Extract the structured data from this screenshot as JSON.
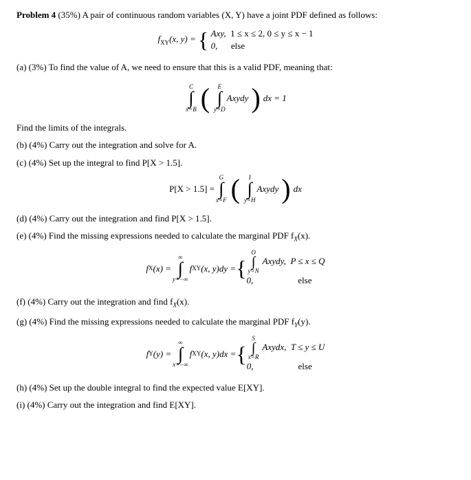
{
  "problem": {
    "title": "Problem 4",
    "weight": "(35%)",
    "intro": "A pair of continuous random variables (X, Y) have a joint PDF defined as follows:"
  },
  "pdf_def": {
    "lhs": "f",
    "sub": "XY",
    "args": "(x, y) = ",
    "case1_expr": "Axy,",
    "case1_cond": "1 ≤ x ≤ 2, 0 ≤ y ≤ x − 1",
    "case2_expr": "0,",
    "case2_cond": "else"
  },
  "part_a": {
    "label": "(a) (3%) To find the value of A, we need to ensure that this is a valid PDF, meaning that:",
    "int1_upper": "C",
    "int1_lower": "x=B",
    "int2_upper": "E",
    "int2_lower": "y=D",
    "integrand": "Axydy",
    "dx": "dx = 1",
    "tail": "Find the limits of the integrals."
  },
  "part_b": {
    "label": "(b) (4%) Carry out the integration and solve for A."
  },
  "part_c": {
    "label": "(c) (4%) Set up the integral to find P[X > 1.5].",
    "lhs": "P[X > 1.5] = ",
    "int1_upper": "G",
    "int1_lower": "x=F",
    "int2_upper": "I",
    "int2_lower": "y=H",
    "integrand": "Axydy",
    "dx": "dx"
  },
  "part_d": {
    "label": "(d) (4%) Carry out the integration and find P[X > 1.5]."
  },
  "part_e": {
    "label": "(e) (4%) Find the missing expressions needed to calculate the marginal PDF f",
    "label_sub": "X",
    "label_tail": "(x).",
    "lhs_f": "f",
    "lhs_sub": "X",
    "lhs_args": "(x) = ",
    "int1_upper": "∞",
    "int1_lower": "y=−∞",
    "integrand1": "f",
    "integrand1_sub": "XY",
    "integrand1_tail": "(x, y)dy = ",
    "int2_upper": "O",
    "int2_lower": "y=N",
    "case1_expr": "Axydy,",
    "case1_cond": "P ≤ x ≤ Q",
    "case2_expr": "0,",
    "case2_cond": "else"
  },
  "part_f": {
    "label": "(f) (4%) Carry out the integration and find f",
    "label_sub": "X",
    "label_tail": "(x)."
  },
  "part_g": {
    "label": "(g) (4%) Find the missing expressions needed to calculate the marginal PDF f",
    "label_sub": "Y",
    "label_tail": "(y).",
    "lhs_f": "f",
    "lhs_sub": "Y",
    "lhs_args": "(y) = ",
    "int1_upper": "∞",
    "int1_lower": "x=−∞",
    "integrand1": "f",
    "integrand1_sub": "XY",
    "integrand1_tail": "(x, y)dx = ",
    "int2_upper": "S",
    "int2_lower": "x=R",
    "case1_expr": "Axydx,",
    "case1_cond": "T ≤ y ≤ U",
    "case2_expr": "0,",
    "case2_cond": "else"
  },
  "part_h": {
    "label": "(h) (4%) Set up the double integral to find the expected value E[XY]."
  },
  "part_i": {
    "label": "(i) (4%) Carry out the integration and find E[XY]."
  }
}
